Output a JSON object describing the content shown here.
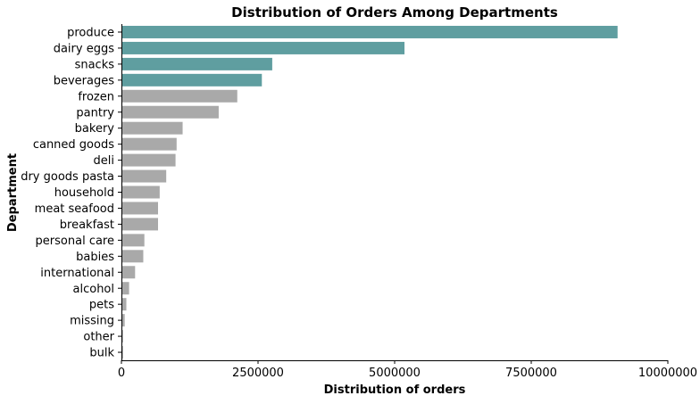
{
  "chart_data": {
    "type": "bar",
    "orientation": "horizontal",
    "title": "Distribution of Orders Among Departments",
    "xlabel": "Distribution of orders",
    "ylabel": "Department",
    "xlim": [
      0,
      10000000
    ],
    "xticks": [
      0,
      2500000,
      5000000,
      7500000,
      10000000
    ],
    "xtick_labels": [
      "0",
      "2500000",
      "5000000",
      "7500000",
      "10000000"
    ],
    "grid": false,
    "categories": [
      "produce",
      "dairy eggs",
      "snacks",
      "beverages",
      "frozen",
      "pantry",
      "bakery",
      "canned goods",
      "deli",
      "dry goods pasta",
      "household",
      "meat seafood",
      "breakfast",
      "personal care",
      "babies",
      "international",
      "alcohol",
      "pets",
      "missing",
      "other",
      "bulk"
    ],
    "values": [
      9080000,
      5180000,
      2760000,
      2570000,
      2120000,
      1780000,
      1120000,
      1010000,
      990000,
      820000,
      700000,
      670000,
      670000,
      420000,
      400000,
      250000,
      140000,
      90000,
      60000,
      30000,
      30000
    ],
    "colors": {
      "highlight": "#5f9ea0",
      "default": "#a9a9a9"
    },
    "highlight_count": 4
  }
}
